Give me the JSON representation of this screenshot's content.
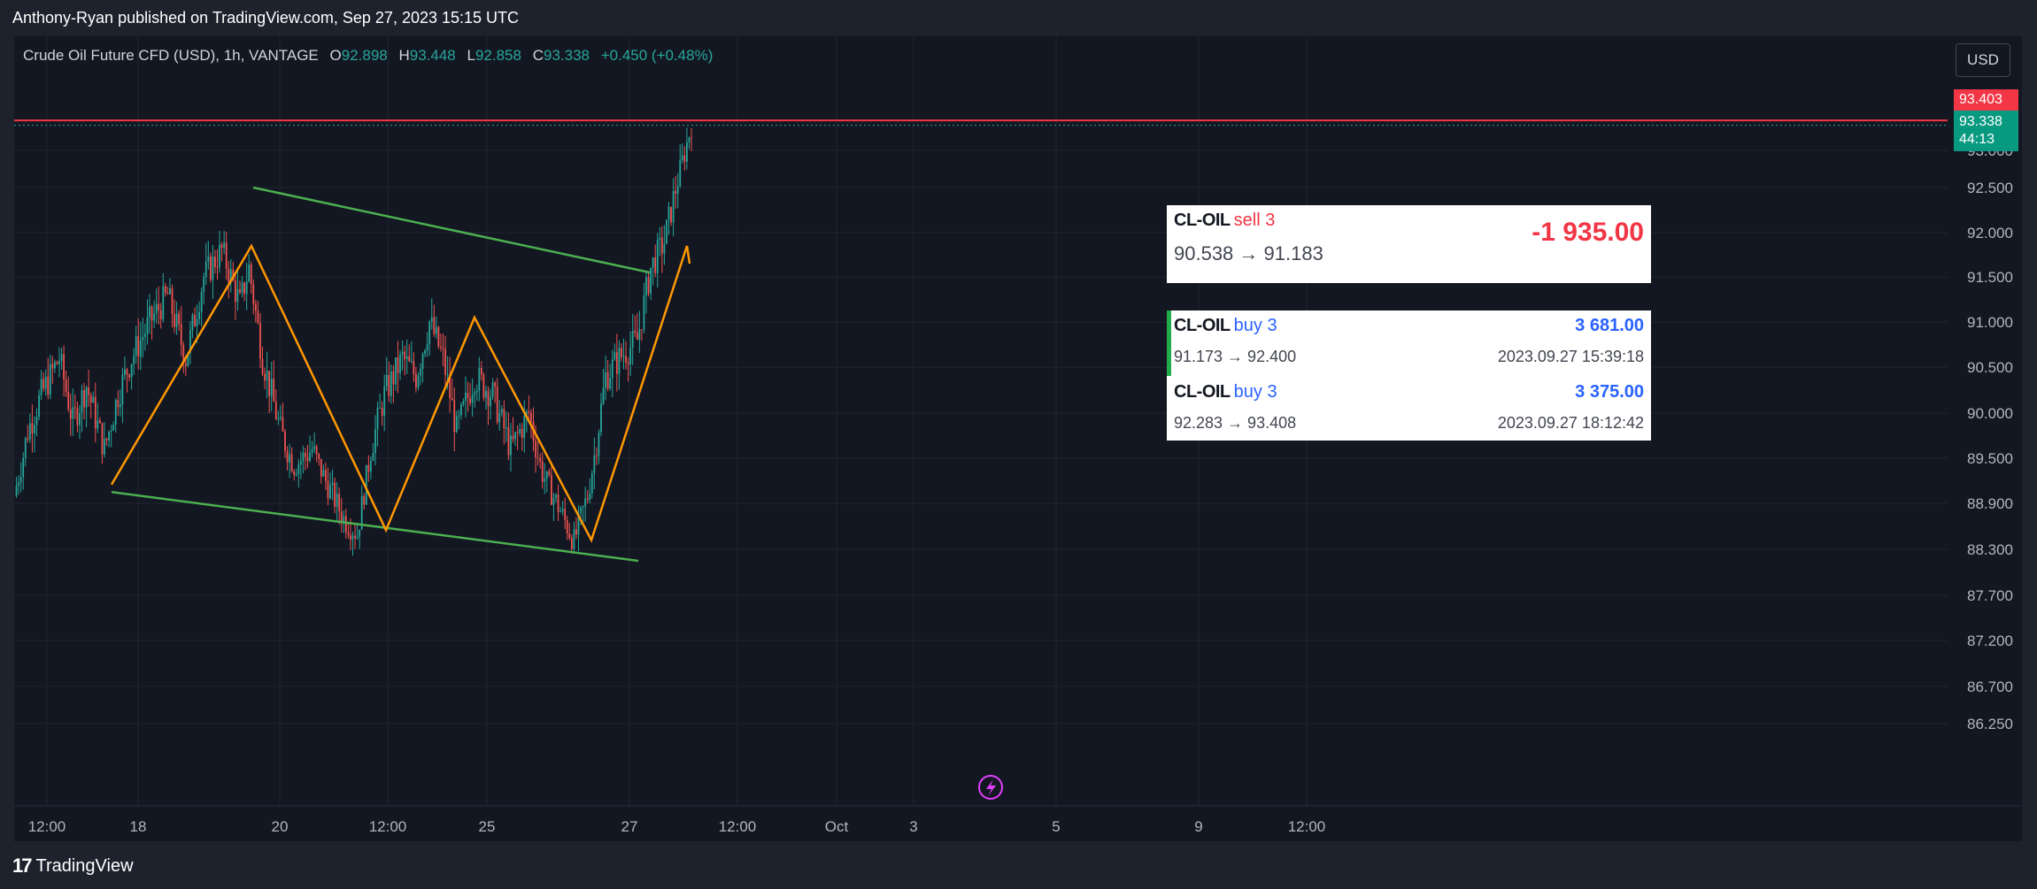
{
  "header": {
    "published": "Anthony-Ryan published on TradingView.com, Sep 27, 2023 15:15 UTC"
  },
  "legend": {
    "symbol": "Crude Oil Future CFD (USD), 1h, VANTAGE",
    "open_label": "O",
    "open": "92.898",
    "high_label": "H",
    "high": "93.448",
    "low_label": "L",
    "low": "92.858",
    "close_label": "C",
    "close": "93.338",
    "change": "+0.450 (+0.48%)"
  },
  "currency": "USD",
  "price_tags": {
    "alert": "93.403",
    "last": "93.338",
    "countdown": "44:13"
  },
  "trades": {
    "sell": {
      "symbol": "CL-OIL",
      "side": "sell 3",
      "path": "90.538 → 91.183",
      "pl": "-1 935.00"
    },
    "buy1": {
      "symbol": "CL-OIL",
      "side": "buy 3",
      "path": "91.173 → 92.400",
      "pl": "3 681.00",
      "time": "2023.09.27 15:39:18"
    },
    "buy2": {
      "symbol": "CL-OIL",
      "side": "buy 3",
      "path": "92.283 → 93.408",
      "pl": "3 375.00",
      "time": "2023.09.27 18:12:42"
    }
  },
  "footer": {
    "logo_text": "TradingView",
    "logo_mark": "17"
  },
  "colors": {
    "up": "#26a69a",
    "down": "#ef5350",
    "pattern": "#ff9800",
    "channel": "#4caf50",
    "alert_line": "#f23645",
    "lightning": "#e040fb"
  },
  "chart_data": {
    "type": "candlestick",
    "y_ticks": [
      "93.000",
      "92.500",
      "92.000",
      "91.500",
      "91.000",
      "90.500",
      "90.000",
      "89.500",
      "88.900",
      "88.300",
      "87.700",
      "87.200",
      "86.700",
      "86.250"
    ],
    "x_ticks": [
      "12:00",
      "18",
      "20",
      "12:00",
      "25",
      "27",
      "12:00",
      "Oct",
      "3",
      "5",
      "9",
      "12:00"
    ],
    "alert_price": 93.403,
    "last_price": 93.338,
    "price_series": [
      [
        0,
        89.0
      ],
      [
        6,
        89.8
      ],
      [
        12,
        90.2
      ],
      [
        20,
        90.6
      ],
      [
        26,
        89.9
      ],
      [
        32,
        90.3
      ],
      [
        40,
        89.6
      ],
      [
        46,
        90.2
      ],
      [
        52,
        90.6
      ],
      [
        60,
        91.0
      ],
      [
        68,
        91.3
      ],
      [
        76,
        90.6
      ],
      [
        84,
        91.5
      ],
      [
        92,
        91.8
      ],
      [
        100,
        91.2
      ],
      [
        104,
        91.6
      ],
      [
        110,
        90.6
      ],
      [
        118,
        89.8
      ],
      [
        124,
        89.4
      ],
      [
        132,
        89.6
      ],
      [
        138,
        89.2
      ],
      [
        146,
        88.7
      ],
      [
        152,
        88.5
      ],
      [
        158,
        89.6
      ],
      [
        164,
        90.2
      ],
      [
        172,
        90.6
      ],
      [
        178,
        90.4
      ],
      [
        184,
        91.0
      ],
      [
        190,
        90.6
      ],
      [
        196,
        89.8
      ],
      [
        204,
        90.4
      ],
      [
        212,
        90.2
      ],
      [
        220,
        89.6
      ],
      [
        228,
        90.0
      ],
      [
        234,
        89.3
      ],
      [
        242,
        88.8
      ],
      [
        248,
        88.4
      ],
      [
        254,
        89.0
      ],
      [
        262,
        90.4
      ],
      [
        268,
        90.6
      ],
      [
        276,
        90.8
      ],
      [
        282,
        91.6
      ],
      [
        288,
        91.9
      ],
      [
        294,
        92.6
      ],
      [
        300,
        93.34
      ]
    ],
    "pattern_points": [
      [
        110,
        89.15
      ],
      [
        268,
        91.85
      ],
      [
        420,
        88.55
      ],
      [
        520,
        91.05
      ],
      [
        652,
        88.42
      ],
      [
        760,
        91.85
      ],
      [
        763,
        91.65
      ]
    ],
    "channel_upper": [
      [
        270,
        92.5
      ],
      [
        718,
        91.55
      ]
    ],
    "channel_lower": [
      [
        110,
        89.05
      ],
      [
        705,
        88.15
      ]
    ]
  }
}
